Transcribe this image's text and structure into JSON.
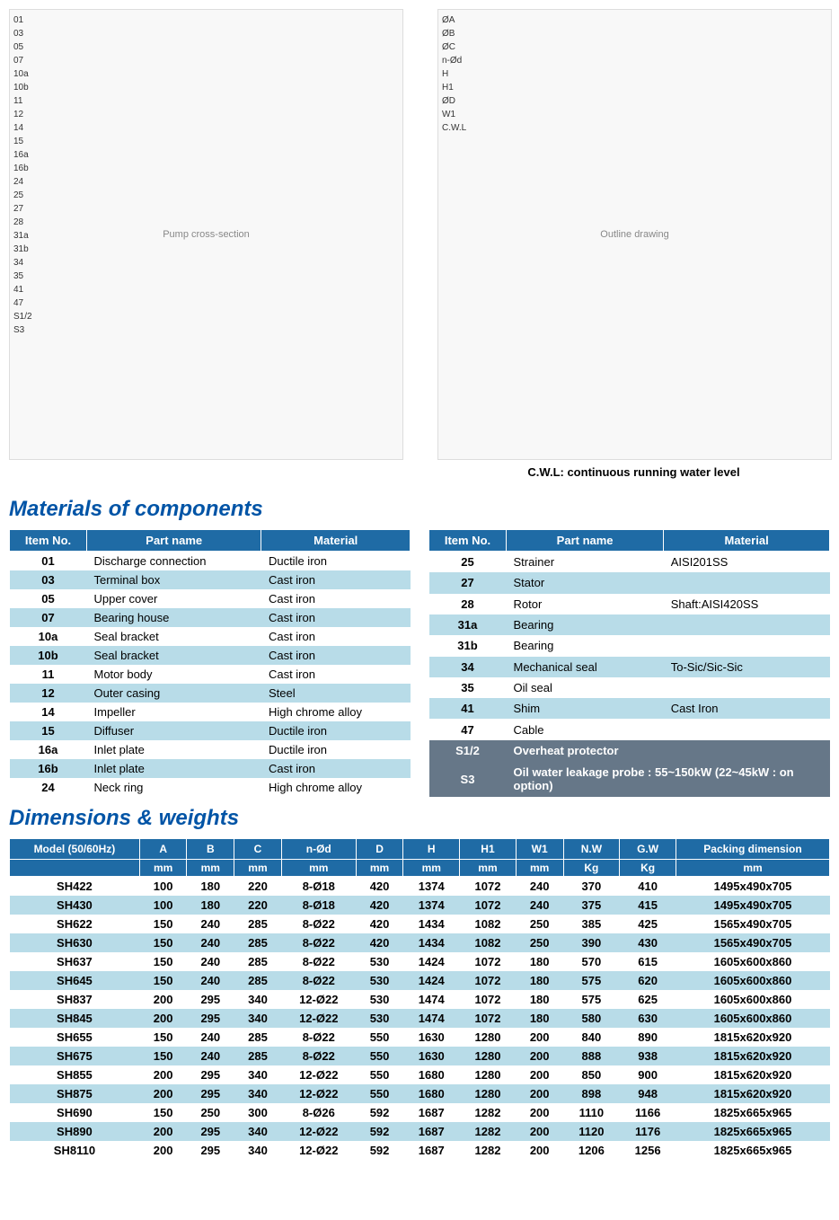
{
  "colors": {
    "header_bg": "#1f6ba5",
    "header_fg": "#ffffff",
    "row_even": "#b8dce8",
    "row_odd": "#ffffff",
    "heading": "#0054a6",
    "sensor_bg": "#6a7a8a"
  },
  "diagrams": {
    "cross_section": {
      "caption": "Pump cross-section",
      "callouts": [
        "01",
        "03",
        "05",
        "07",
        "10a",
        "10b",
        "11",
        "12",
        "14",
        "15",
        "16a",
        "16b",
        "24",
        "25",
        "27",
        "28",
        "31a",
        "31b",
        "34",
        "35",
        "41",
        "47",
        "S1/2",
        "S3"
      ]
    },
    "outline": {
      "caption": "Outline drawing",
      "dim_labels": [
        "ØA",
        "ØB",
        "ØC",
        "n-Ød",
        "H",
        "H1",
        "ØD",
        "W1",
        "C.W.L"
      ]
    },
    "cwl_note": "C.W.L: continuous running water level"
  },
  "materials": {
    "heading": "Materials of components",
    "columns": [
      "Item No.",
      "Part name",
      "Material"
    ],
    "left": [
      {
        "no": "01",
        "name": "Discharge connection",
        "mat": "Ductile iron"
      },
      {
        "no": "03",
        "name": "Terminal box",
        "mat": "Cast iron"
      },
      {
        "no": "05",
        "name": "Upper cover",
        "mat": "Cast iron"
      },
      {
        "no": "07",
        "name": "Bearing house",
        "mat": "Cast iron"
      },
      {
        "no": "10a",
        "name": "Seal bracket",
        "mat": "Cast iron"
      },
      {
        "no": "10b",
        "name": "Seal bracket",
        "mat": "Cast iron"
      },
      {
        "no": "11",
        "name": "Motor body",
        "mat": "Cast iron"
      },
      {
        "no": "12",
        "name": "Outer casing",
        "mat": "Steel"
      },
      {
        "no": "14",
        "name": "Impeller",
        "mat": "High chrome alloy"
      },
      {
        "no": "15",
        "name": "Diffuser",
        "mat": "Ductile iron"
      },
      {
        "no": "16a",
        "name": "Inlet plate",
        "mat": "Ductile iron"
      },
      {
        "no": "16b",
        "name": "Inlet plate",
        "mat": "Cast iron"
      },
      {
        "no": "24",
        "name": "Neck ring",
        "mat": "High chrome alloy"
      }
    ],
    "right": [
      {
        "no": "25",
        "name": "Strainer",
        "mat": "AISI201SS"
      },
      {
        "no": "27",
        "name": "Stator",
        "mat": ""
      },
      {
        "no": "28",
        "name": "Rotor",
        "mat": "Shaft:AISI420SS"
      },
      {
        "no": "31a",
        "name": "Bearing",
        "mat": ""
      },
      {
        "no": "31b",
        "name": "Bearing",
        "mat": ""
      },
      {
        "no": "34",
        "name": "Mechanical seal",
        "mat": "To-Sic/Sic-Sic"
      },
      {
        "no": "35",
        "name": "Oil seal",
        "mat": ""
      },
      {
        "no": "41",
        "name": "Shim",
        "mat": "Cast Iron"
      },
      {
        "no": "47",
        "name": "Cable",
        "mat": ""
      }
    ],
    "sensors": [
      {
        "no": "S1/2",
        "desc": "Overheat protector"
      },
      {
        "no": "S3",
        "desc": "Oil water leakage probe : 55~150kW (22~45kW : on option)"
      }
    ]
  },
  "dimensions": {
    "heading": "Dimensions & weights",
    "head1": [
      "Model (50/60Hz)",
      "A",
      "B",
      "C",
      "n-Ød",
      "D",
      "H",
      "H1",
      "W1",
      "N.W",
      "G.W",
      "Packing dimension"
    ],
    "head2": [
      "",
      "mm",
      "mm",
      "mm",
      "mm",
      "mm",
      "mm",
      "mm",
      "mm",
      "Kg",
      "Kg",
      "mm"
    ],
    "rows": [
      [
        "SH422",
        "100",
        "180",
        "220",
        "8-Ø18",
        "420",
        "1374",
        "1072",
        "240",
        "370",
        "410",
        "1495x490x705"
      ],
      [
        "SH430",
        "100",
        "180",
        "220",
        "8-Ø18",
        "420",
        "1374",
        "1072",
        "240",
        "375",
        "415",
        "1495x490x705"
      ],
      [
        "SH622",
        "150",
        "240",
        "285",
        "8-Ø22",
        "420",
        "1434",
        "1082",
        "250",
        "385",
        "425",
        "1565x490x705"
      ],
      [
        "SH630",
        "150",
        "240",
        "285",
        "8-Ø22",
        "420",
        "1434",
        "1082",
        "250",
        "390",
        "430",
        "1565x490x705"
      ],
      [
        "SH637",
        "150",
        "240",
        "285",
        "8-Ø22",
        "530",
        "1424",
        "1072",
        "180",
        "570",
        "615",
        "1605x600x860"
      ],
      [
        "SH645",
        "150",
        "240",
        "285",
        "8-Ø22",
        "530",
        "1424",
        "1072",
        "180",
        "575",
        "620",
        "1605x600x860"
      ],
      [
        "SH837",
        "200",
        "295",
        "340",
        "12-Ø22",
        "530",
        "1474",
        "1072",
        "180",
        "575",
        "625",
        "1605x600x860"
      ],
      [
        "SH845",
        "200",
        "295",
        "340",
        "12-Ø22",
        "530",
        "1474",
        "1072",
        "180",
        "580",
        "630",
        "1605x600x860"
      ],
      [
        "SH655",
        "150",
        "240",
        "285",
        "8-Ø22",
        "550",
        "1630",
        "1280",
        "200",
        "840",
        "890",
        "1815x620x920"
      ],
      [
        "SH675",
        "150",
        "240",
        "285",
        "8-Ø22",
        "550",
        "1630",
        "1280",
        "200",
        "888",
        "938",
        "1815x620x920"
      ],
      [
        "SH855",
        "200",
        "295",
        "340",
        "12-Ø22",
        "550",
        "1680",
        "1280",
        "200",
        "850",
        "900",
        "1815x620x920"
      ],
      [
        "SH875",
        "200",
        "295",
        "340",
        "12-Ø22",
        "550",
        "1680",
        "1280",
        "200",
        "898",
        "948",
        "1815x620x920"
      ],
      [
        "SH690",
        "150",
        "250",
        "300",
        "8-Ø26",
        "592",
        "1687",
        "1282",
        "200",
        "1110",
        "1166",
        "1825x665x965"
      ],
      [
        "SH890",
        "200",
        "295",
        "340",
        "12-Ø22",
        "592",
        "1687",
        "1282",
        "200",
        "1120",
        "1176",
        "1825x665x965"
      ],
      [
        "SH8110",
        "200",
        "295",
        "340",
        "12-Ø22",
        "592",
        "1687",
        "1282",
        "200",
        "1206",
        "1256",
        "1825x665x965"
      ]
    ]
  }
}
